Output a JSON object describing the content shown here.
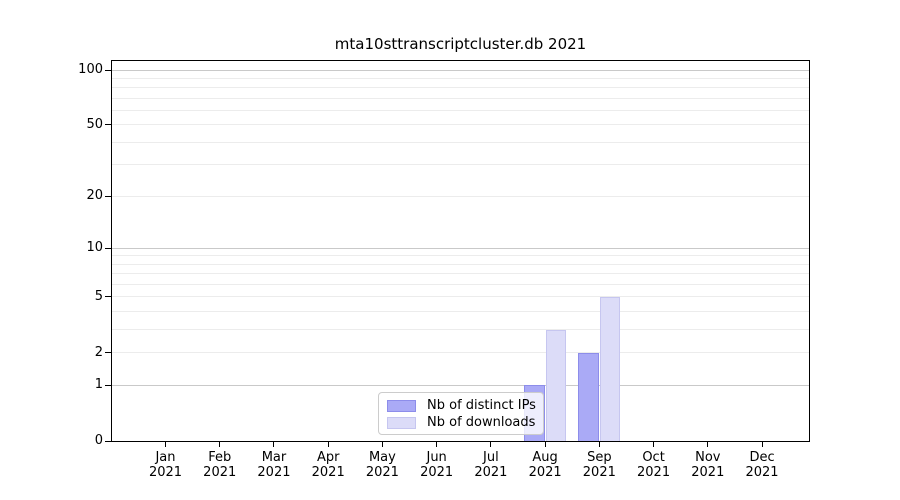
{
  "title": "mta10sttranscriptcluster.db 2021",
  "chart_data": {
    "type": "bar",
    "title": "mta10sttranscriptcluster.db 2021",
    "year_label": "2021",
    "categories": [
      "Jan",
      "Feb",
      "Mar",
      "Apr",
      "May",
      "Jun",
      "Jul",
      "Aug",
      "Sep",
      "Oct",
      "Nov",
      "Dec"
    ],
    "series": [
      {
        "name": "Nb of distinct IPs",
        "values": [
          0,
          0,
          0,
          0,
          0,
          0,
          0,
          1,
          2,
          0,
          0,
          0
        ],
        "color": "#aaaaf6",
        "edge_color": "#8d8dea"
      },
      {
        "name": "Nb of downloads",
        "values": [
          0,
          0,
          0,
          0,
          0,
          0,
          0,
          3,
          5,
          0,
          0,
          0
        ],
        "color": "#dcdcf8",
        "edge_color": "#c6c6f0"
      }
    ],
    "y_axis": {
      "scale": "log10(1+y)",
      "tick_labels": [
        0,
        1,
        2,
        5,
        10,
        20,
        50,
        100
      ],
      "emphasized_gridlines": [
        1,
        10,
        100
      ],
      "light_gridlines": [
        2,
        3,
        4,
        5,
        6,
        7,
        8,
        9,
        20,
        30,
        40,
        50,
        60,
        70,
        80,
        90
      ],
      "max": 112
    },
    "legend": {
      "position": "bottom-center"
    },
    "grid": "horizontal",
    "colors": {
      "emphasized_grid": "#c9c9c9",
      "light_grid": "#ececec",
      "spine": "#000000",
      "background": "#ffffff"
    }
  }
}
